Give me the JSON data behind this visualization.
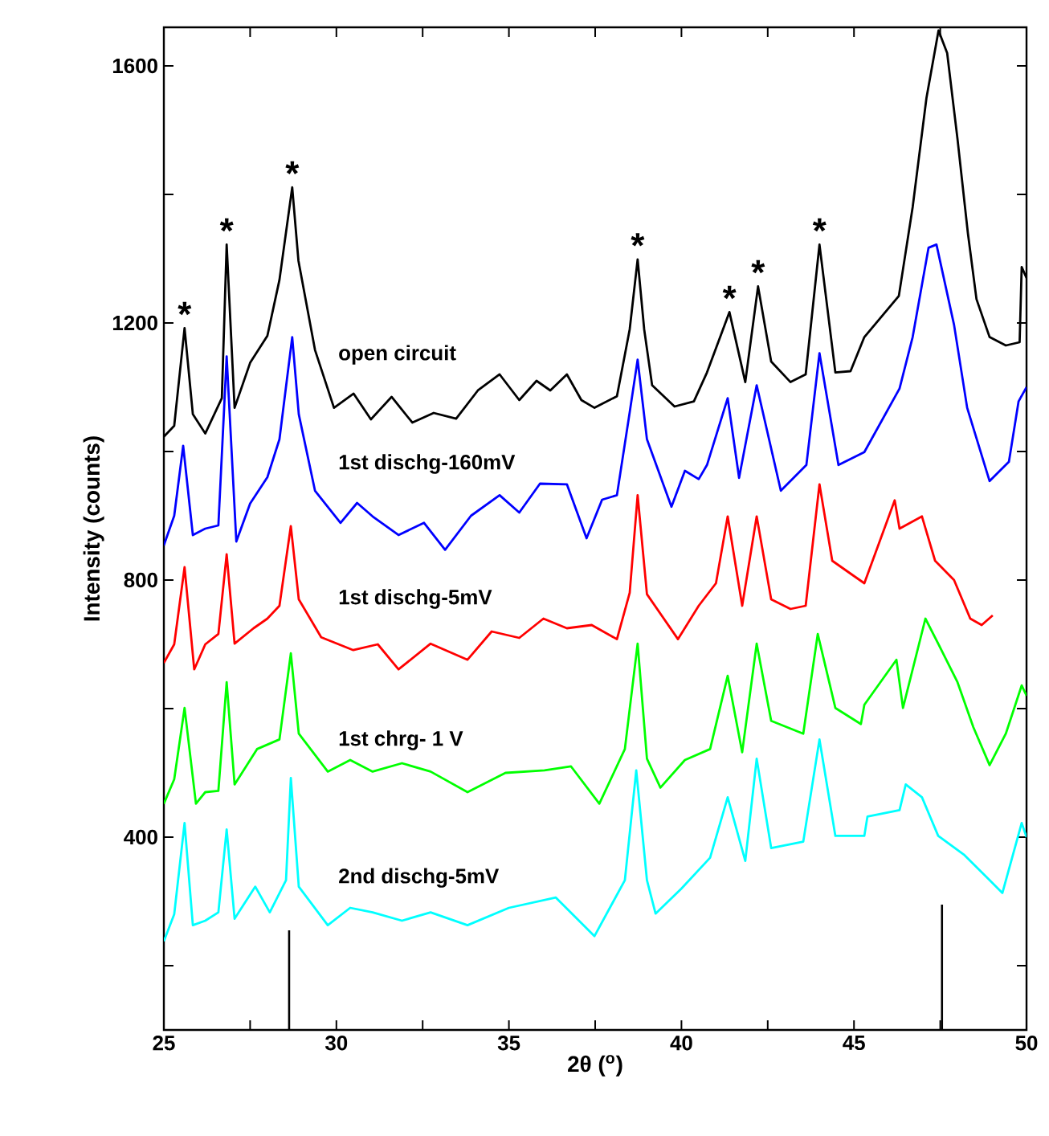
{
  "chart_data": {
    "type": "line",
    "xlabel": "2θ ($^{o}$)",
    "ylabel": "Intensity (counts)",
    "xlim": [
      25,
      50
    ],
    "ylim": [
      100,
      1660
    ],
    "xticks": [
      25,
      {
        "value": 27.5,
        "label": null
      },
      30,
      {
        "value": 32.5,
        "label": null
      },
      35,
      {
        "value": 37.5,
        "label": null
      },
      40,
      {
        "value": 42.5,
        "label": null
      },
      45,
      {
        "value": 47.5,
        "label": null
      },
      50
    ],
    "yticks": [
      {
        "value": 200,
        "label": null
      },
      400,
      {
        "value": 600,
        "label": null
      },
      800,
      {
        "value": 1000,
        "label": null
      },
      1200,
      {
        "value": 1400,
        "label": null
      },
      1600
    ],
    "marker": "none",
    "series": [
      {
        "name": "open circuit",
        "color": "#000000",
        "x": [
          25.0,
          25.3,
          25.6,
          25.84,
          26.2,
          26.68,
          26.82,
          27.05,
          27.5,
          28.0,
          28.35,
          28.72,
          28.9,
          29.38,
          29.93,
          30.5,
          31.0,
          31.6,
          32.2,
          32.82,
          33.47,
          34.1,
          34.73,
          35.3,
          35.8,
          36.2,
          36.68,
          37.1,
          37.48,
          38.13,
          38.5,
          38.73,
          38.92,
          39.15,
          39.8,
          40.36,
          40.74,
          41.39,
          41.85,
          42.22,
          42.6,
          43.16,
          43.6,
          44.0,
          44.46,
          44.9,
          45.3,
          46.3,
          46.7,
          47.1,
          47.45,
          47.7,
          48.0,
          48.3,
          48.55,
          48.93,
          49.4,
          49.8,
          49.86,
          50.0
        ],
        "values": [
          1023,
          1040,
          1192,
          1058,
          1028,
          1083,
          1322,
          1068,
          1138,
          1180,
          1267,
          1411,
          1297,
          1158,
          1068,
          1090,
          1050,
          1085,
          1045,
          1060,
          1051,
          1095,
          1120,
          1080,
          1110,
          1095,
          1120,
          1080,
          1068,
          1086,
          1190,
          1299,
          1190,
          1103,
          1070,
          1078,
          1123,
          1217,
          1108,
          1257,
          1140,
          1108,
          1120,
          1322,
          1123,
          1125,
          1178,
          1242,
          1380,
          1550,
          1655,
          1620,
          1486,
          1340,
          1237,
          1178,
          1165,
          1170,
          1287,
          1270
        ]
      },
      {
        "name": "1st dischg-160mV",
        "color": "#0000ff",
        "x": [
          25.0,
          25.3,
          25.56,
          25.84,
          26.2,
          26.58,
          26.82,
          27.1,
          27.5,
          28.0,
          28.35,
          28.72,
          28.91,
          29.38,
          30.12,
          30.6,
          31.05,
          31.8,
          32.54,
          33.15,
          33.9,
          34.73,
          35.3,
          35.9,
          36.68,
          37.25,
          37.7,
          38.13,
          38.5,
          38.73,
          39.0,
          39.71,
          40.1,
          40.5,
          40.74,
          41.34,
          41.67,
          42.18,
          42.88,
          43.62,
          44.0,
          44.55,
          45.3,
          46.32,
          46.7,
          47.16,
          47.39,
          47.9,
          48.28,
          48.93,
          49.49,
          49.77,
          50.0
        ],
        "values": [
          854,
          900,
          1009,
          870,
          880,
          885,
          1148,
          860,
          919,
          960,
          1019,
          1178,
          1058,
          939,
          889,
          920,
          899,
          870,
          889,
          847,
          900,
          932,
          905,
          950,
          949,
          865,
          925,
          932,
          1061,
          1143,
          1019,
          914,
          970,
          957,
          979,
          1083,
          959,
          1103,
          939,
          979,
          1153,
          979,
          999,
          1098,
          1178,
          1317,
          1322,
          1197,
          1068,
          954,
          984,
          1078,
          1100
        ]
      },
      {
        "name": "1st dischg-5mV",
        "color": "#ff0000",
        "x": [
          25.0,
          25.3,
          25.6,
          25.88,
          26.2,
          26.58,
          26.82,
          27.05,
          27.6,
          28.0,
          28.35,
          28.68,
          28.91,
          29.56,
          30.49,
          31.2,
          31.8,
          32.73,
          33.8,
          34.5,
          35.3,
          36.0,
          36.68,
          37.4,
          38.13,
          38.5,
          38.73,
          39.0,
          39.9,
          40.5,
          41.0,
          41.34,
          41.76,
          42.18,
          42.6,
          43.16,
          43.6,
          44.0,
          44.37,
          44.9,
          45.3,
          46.18,
          46.32,
          46.97,
          47.35,
          47.9,
          48.37,
          48.7,
          49.02
        ],
        "values": [
          671,
          700,
          820,
          661,
          700,
          716,
          840,
          701,
          725,
          740,
          760,
          884,
          770,
          711,
          691,
          700,
          661,
          701,
          676,
          720,
          710,
          740,
          725,
          730,
          708,
          780,
          932,
          778,
          708,
          760,
          795,
          899,
          760,
          899,
          770,
          755,
          760,
          949,
          830,
          810,
          795,
          924,
          880,
          899,
          830,
          800,
          740,
          730,
          745
        ]
      },
      {
        "name": "1st chrg- 1 V",
        "color": "#00ff00",
        "x": [
          25.0,
          25.3,
          25.6,
          25.93,
          26.2,
          26.58,
          26.82,
          27.05,
          27.7,
          28.35,
          28.68,
          28.91,
          29.75,
          30.4,
          31.05,
          31.9,
          32.73,
          33.8,
          34.9,
          36.03,
          36.8,
          37.62,
          38.36,
          38.73,
          39.0,
          39.39,
          40.1,
          40.83,
          41.34,
          41.76,
          42.18,
          42.6,
          43.53,
          43.95,
          44.46,
          45.2,
          45.3,
          46.23,
          46.42,
          47.07,
          47.44,
          48.0,
          48.46,
          48.93,
          49.4,
          49.86,
          50.0
        ],
        "values": [
          452,
          490,
          601,
          452,
          470,
          472,
          641,
          482,
          537,
          552,
          686,
          561,
          502,
          520,
          502,
          515,
          502,
          470,
          500,
          504,
          510,
          452,
          537,
          701,
          522,
          477,
          520,
          537,
          651,
          532,
          701,
          581,
          561,
          716,
          601,
          576,
          606,
          676,
          601,
          740,
          701,
          641,
          571,
          512,
          561,
          636,
          620
        ]
      },
      {
        "name": "2nd dischg-5mV",
        "color": "#00ffff",
        "x": [
          25.0,
          25.3,
          25.6,
          25.84,
          26.2,
          26.58,
          26.82,
          27.05,
          27.65,
          28.07,
          28.54,
          28.68,
          28.91,
          29.75,
          30.4,
          31.05,
          31.9,
          32.73,
          33.8,
          35.0,
          36.36,
          37.48,
          38.36,
          38.69,
          39.0,
          39.25,
          40.0,
          40.83,
          41.34,
          41.85,
          42.18,
          42.6,
          43.53,
          44.0,
          44.46,
          45.3,
          45.39,
          46.32,
          46.5,
          46.97,
          47.44,
          48.18,
          48.93,
          49.3,
          49.86,
          50.0
        ],
        "values": [
          238,
          280,
          422,
          263,
          270,
          283,
          412,
          273,
          323,
          283,
          333,
          492,
          323,
          263,
          290,
          283,
          270,
          283,
          263,
          290,
          306,
          246,
          333,
          504,
          333,
          281,
          320,
          368,
          462,
          363,
          522,
          383,
          393,
          552,
          402,
          402,
          432,
          442,
          482,
          462,
          402,
          373,
          333,
          313,
          422,
          400
        ]
      },
      {
        "type": "bar",
        "color": "#000000",
        "x": [
          28.63,
          47.55
        ],
        "values": [
          255,
          295
        ]
      }
    ],
    "annotations": [
      {
        "text": "*",
        "x": 25.6,
        "y": 1192
      },
      {
        "text": "*",
        "x": 26.82,
        "y": 1322
      },
      {
        "text": "*",
        "x": 28.72,
        "y": 1411
      },
      {
        "text": "*",
        "x": 38.73,
        "y": 1299
      },
      {
        "text": "*",
        "x": 41.39,
        "y": 1217
      },
      {
        "text": "*",
        "x": 42.22,
        "y": 1257
      },
      {
        "text": "*",
        "x": 44.0,
        "y": 1322
      }
    ]
  }
}
